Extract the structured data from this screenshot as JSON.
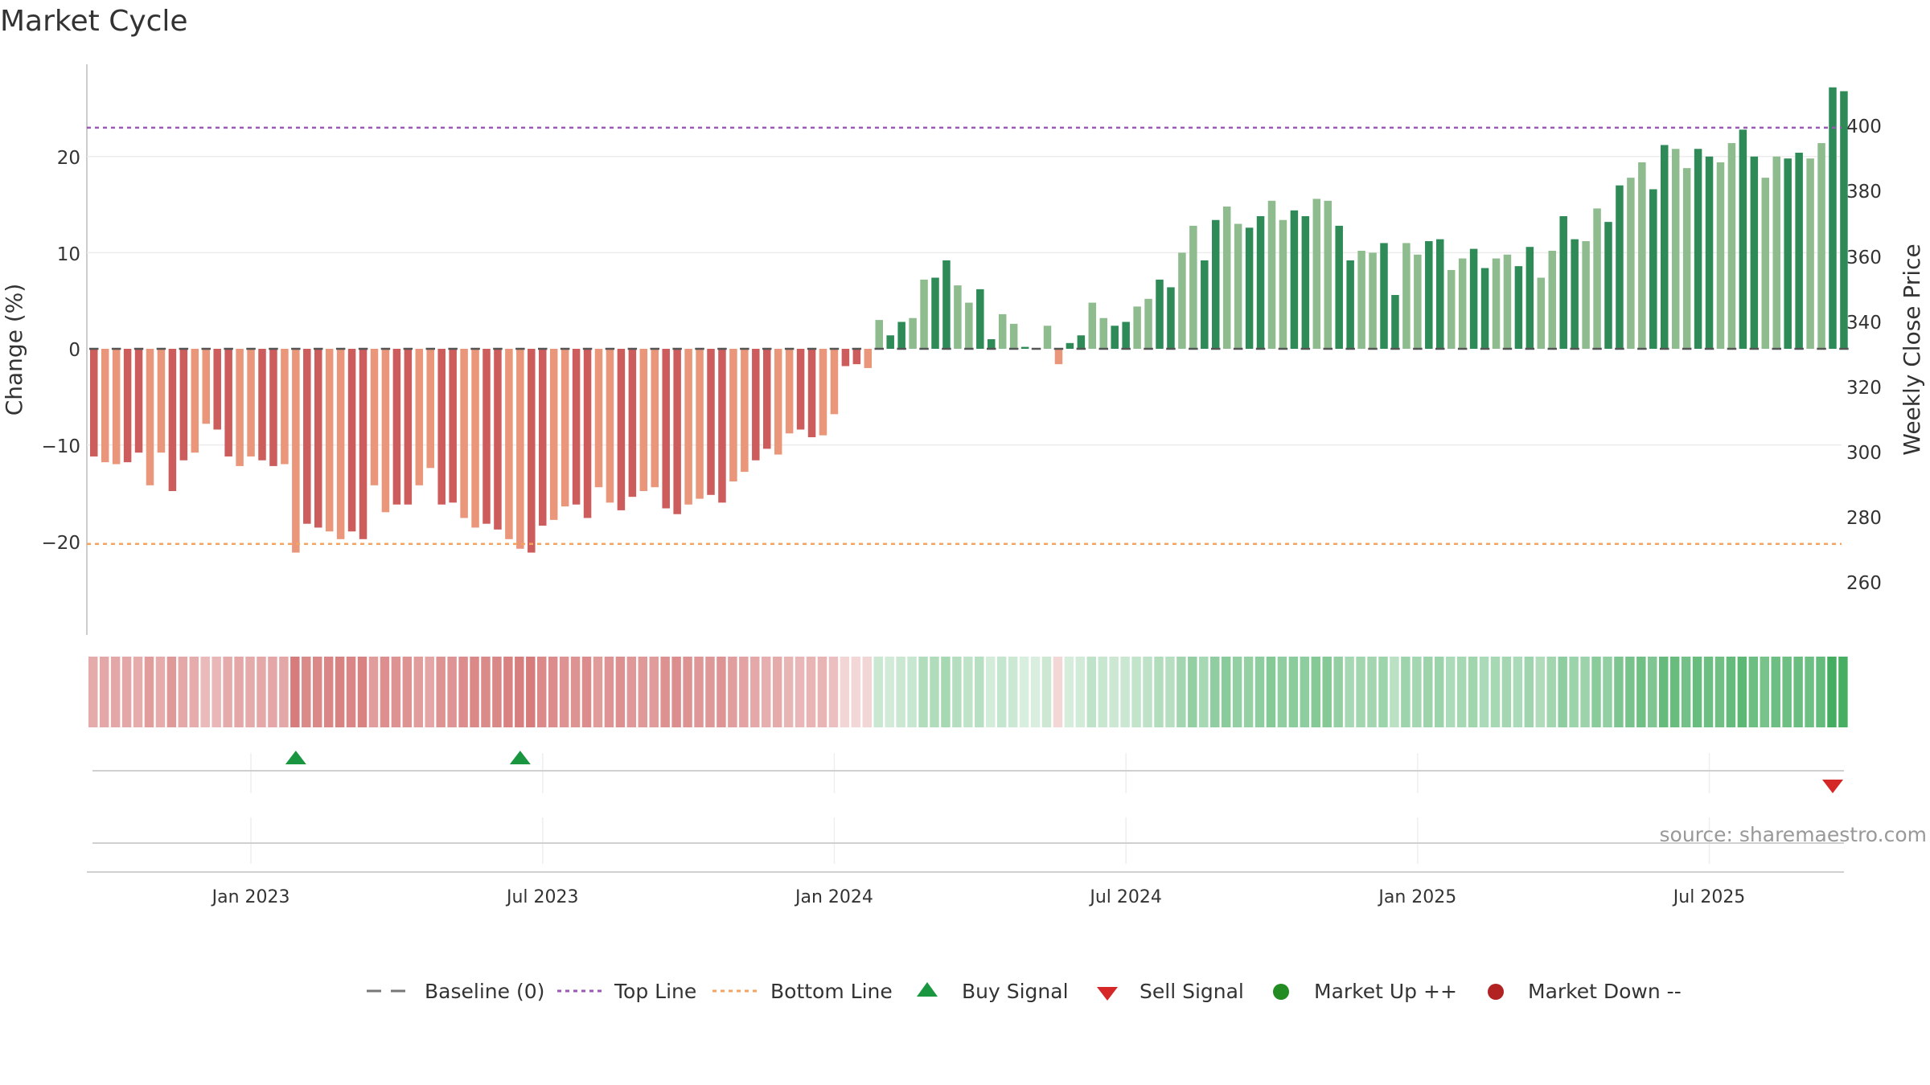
{
  "chart_data": {
    "type": "bar",
    "title": "Market Cycle",
    "ylabel_left": "Change (%)",
    "ylabel_right": "Weekly Close Price",
    "left_ticks": [
      "−20",
      "−10",
      "0",
      "10",
      "20"
    ],
    "right_ticks": [
      "260",
      "280",
      "300",
      "320",
      "340",
      "360",
      "380",
      "400"
    ],
    "ylim_left": [
      -29.5,
      29.5
    ],
    "ylim_right": [
      248,
      414
    ],
    "x_ticks": [
      "Jan 2023",
      "Jul 2023",
      "Jan 2024",
      "Jul 2024",
      "Jan 2025",
      "Jul 2025"
    ],
    "x_tick_weeks": [
      14,
      40,
      66,
      92,
      118,
      144
    ],
    "weeks": 157,
    "reference_lines": {
      "baseline": 0,
      "top_line": 23,
      "bottom_line": -20.3
    },
    "change_pct": [
      -11.2,
      -11.8,
      -12,
      -11.8,
      -10.8,
      -14.2,
      -10.8,
      -14.8,
      -11.6,
      -10.8,
      -7.8,
      -8.4,
      -11.2,
      -12.2,
      -11.2,
      -11.6,
      -12.2,
      -12,
      -21.2,
      -18.2,
      -18.6,
      -19,
      -19.8,
      -19,
      -19.8,
      -14.2,
      -17,
      -16.2,
      -16.2,
      -14.2,
      -12.4,
      -16.2,
      -16,
      -17.6,
      -18.6,
      -18.2,
      -18.8,
      -19.8,
      -20.8,
      -21.2,
      -18.4,
      -17.8,
      -16.4,
      -16.2,
      -17.6,
      -14.4,
      -16,
      -16.8,
      -15.4,
      -14.8,
      -14.4,
      -16.6,
      -17.2,
      -16.2,
      -15.6,
      -15.2,
      -16,
      -13.8,
      -12.8,
      -11.6,
      -10.4,
      -11,
      -8.8,
      -8.4,
      -9.2,
      -9,
      -6.8,
      -1.8,
      -1.6,
      -2,
      3,
      1.4,
      2.8,
      3.2,
      7.2,
      7.4,
      9.2,
      6.6,
      4.8,
      6.2,
      1,
      3.6,
      2.6,
      0.2,
      0,
      2.4,
      -1.6,
      0.6,
      1.4,
      4.8,
      3.2,
      2.4,
      2.8,
      4.4,
      5.2,
      7.2,
      6.4,
      10,
      12.8,
      9.2,
      13.4,
      14.8,
      13,
      12.6,
      13.8,
      15.4,
      13.4,
      14.4,
      13.8,
      15.6,
      15.4,
      12.8,
      9.2,
      10.2,
      10,
      11,
      5.6,
      11,
      9.8,
      11.2,
      11.4,
      8.2,
      9.4,
      10.4,
      8.4,
      9.4,
      9.8,
      8.6,
      10.6,
      7.4,
      10.2,
      13.8,
      11.4,
      11.2,
      14.6,
      13.2,
      17,
      17.8,
      19.4,
      16.6,
      21.2,
      20.8,
      18.8,
      20.8,
      20,
      19.4,
      21.4,
      22.8,
      20,
      17.8,
      20,
      19.8,
      20.4,
      19.8,
      21.4,
      27.2,
      26.8
    ],
    "signals": [
      {
        "type": "buy",
        "week": 18
      },
      {
        "type": "buy",
        "week": 38
      },
      {
        "type": "sell",
        "week": 155
      }
    ],
    "legend": [
      "Baseline (0)",
      "Top Line",
      "Bottom Line",
      "Buy Signal",
      "Sell Signal",
      "Market Up ++",
      "Market Down --"
    ],
    "colors": {
      "down_dark": "#cd5c5c",
      "down_light": "#e9967a",
      "up_dark": "#2e8b57",
      "up_light": "#8fbc8f",
      "top_line": "#9b59b6",
      "bottom_line": "#f4a460",
      "buy": "#1a9641",
      "sell": "#d62728",
      "market_up": "#228b22",
      "market_down": "#b22222"
    }
  },
  "source": "source: sharemaestro.com"
}
